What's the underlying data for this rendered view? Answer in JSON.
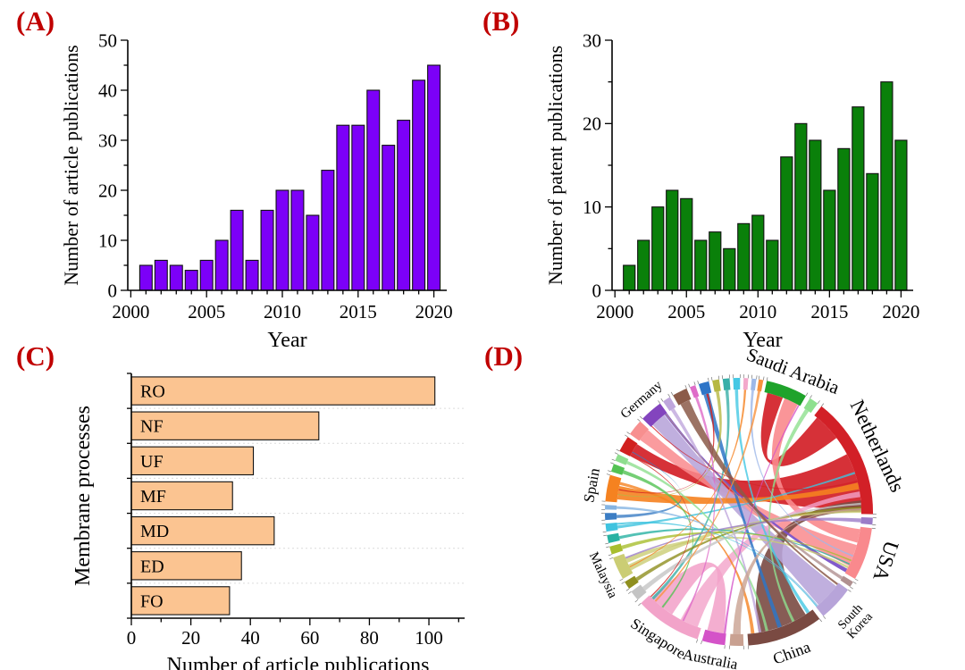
{
  "panels": {
    "label_color": "#C00000",
    "a": "(A)",
    "b": "(B)",
    "c": "(C)",
    "d": "(D)"
  },
  "chart_data": [
    {
      "panel": "A",
      "type": "bar",
      "title": "",
      "xlabel": "Year",
      "ylabel": "Number of article publications",
      "bar_color": "#7C00F8",
      "bar_edge": "#111111",
      "categories": [
        2001,
        2002,
        2003,
        2004,
        2005,
        2006,
        2007,
        2008,
        2009,
        2010,
        2011,
        2012,
        2013,
        2014,
        2015,
        2016,
        2017,
        2018,
        2019,
        2020
      ],
      "values": [
        5,
        6,
        5,
        4,
        6,
        10,
        16,
        6,
        16,
        20,
        20,
        15,
        24,
        33,
        33,
        40,
        29,
        34,
        42,
        45
      ],
      "ylim": [
        0,
        50
      ],
      "yticks": [
        0,
        10,
        20,
        30,
        40,
        50
      ],
      "xlim": [
        1999.8,
        2020.85
      ],
      "xticks": [
        2000,
        2005,
        2010,
        2015,
        2020
      ],
      "grid": false,
      "legend": "none"
    },
    {
      "panel": "B",
      "type": "bar",
      "title": "",
      "xlabel": "Year",
      "ylabel": "Number of patent publications",
      "bar_color": "#0A800A",
      "bar_edge": "#111111",
      "categories": [
        2001,
        2002,
        2003,
        2004,
        2005,
        2006,
        2007,
        2008,
        2009,
        2010,
        2011,
        2012,
        2013,
        2014,
        2015,
        2016,
        2017,
        2018,
        2019,
        2020
      ],
      "values": [
        3,
        6,
        10,
        12,
        11,
        6,
        7,
        5,
        8,
        9,
        6,
        16,
        20,
        18,
        12,
        17,
        22,
        14,
        25,
        18
      ],
      "ylim": [
        0,
        30
      ],
      "yticks": [
        0,
        10,
        20,
        30
      ],
      "xlim": [
        1999.8,
        2020.85
      ],
      "xticks": [
        2000,
        2005,
        2010,
        2015,
        2020
      ],
      "grid": false,
      "legend": "none"
    },
    {
      "panel": "C",
      "type": "hbar",
      "title": "",
      "xlabel": "Number of article publications",
      "ylabel": "Membrane processes",
      "bar_color": "#FBC491",
      "bar_edge": "#111111",
      "categories": [
        "RO",
        "NF",
        "UF",
        "MF",
        "MD",
        "ED",
        "FO"
      ],
      "values": [
        102,
        63,
        41,
        34,
        48,
        37,
        33
      ],
      "xlim": [
        0,
        112
      ],
      "xticks": [
        0,
        20,
        40,
        60,
        80,
        100
      ],
      "minor_xticks": [
        10,
        30,
        50,
        70,
        90,
        110
      ],
      "grid": "dotted-category-separators",
      "legend": "none"
    },
    {
      "panel": "D",
      "type": "chord",
      "title": "",
      "description": "International collaboration chord diagram",
      "labels": [
        "Saudi Arabia",
        "Netherlands",
        "USA",
        "South Korea",
        "China",
        "Australia",
        "Singapore",
        "Malaysia",
        "Spain",
        "Germany"
      ],
      "segments": [
        {
          "c": "#1FA32B",
          "a0": 12,
          "a1": 30,
          "label": "Saudi Arabia",
          "lc": "#1FA32B",
          "ls": 21,
          "r_off": 2
        },
        {
          "c": "#8FE08F",
          "a0": 32,
          "a1": 36
        },
        {
          "c": "#D22027",
          "a0": 38,
          "a1": 91,
          "label": "Netherlands",
          "lc": "#E02A22",
          "ls": 23,
          "r_off": 4
        },
        {
          "c": "#9B7CC8",
          "a0": 92.5,
          "a1": 95.5
        },
        {
          "c": "#F9898D",
          "a0": 97,
          "a1": 120,
          "label": "USA",
          "lc": "#F98A8A",
          "ls": 23,
          "r_off": 6
        },
        {
          "c": "#B09090",
          "a0": 121.5,
          "a1": 124
        },
        {
          "c": "#B7A4D9",
          "a0": 125.5,
          "a1": 141,
          "label": "South Korea",
          "lines": [
            "South",
            "Korea"
          ],
          "lc": "#6F5FC5",
          "ls": 14,
          "r_off": 4
        },
        {
          "c": "#7A4A42",
          "a0": 143,
          "a1": 176,
          "label": "China",
          "lc": "#8A4038",
          "ls": 18,
          "r_off": 0
        },
        {
          "c": "#C9A191",
          "a0": 178,
          "a1": 184
        },
        {
          "c": "#D453C8",
          "a0": 186,
          "a1": 196,
          "label": "Australia",
          "lc": "#DD66D4",
          "ls": 17,
          "r_off": 0
        },
        {
          "c": "#F2A3C9",
          "a0": 198,
          "a1": 227,
          "label": "Singapore",
          "lc": "#F07EB0",
          "ls": 17,
          "r_off": 0
        },
        {
          "c": "#C4C4C4",
          "a0": 229,
          "a1": 233.5
        },
        {
          "c": "#8F8F1F",
          "a0": 235,
          "a1": 238.5
        },
        {
          "c": "#CBCD74",
          "a0": 240,
          "a1": 250,
          "label": "Malaysia",
          "lc": "#A3A53B",
          "ls": 15,
          "r_off": 0
        },
        {
          "c": "#A8BE2E",
          "a0": 251.5,
          "a1": 255
        },
        {
          "c": "#28B2A2",
          "a0": 256.5,
          "a1": 260
        },
        {
          "c": "#3FC3DF",
          "a0": 261.5,
          "a1": 265
        },
        {
          "c": "#3B7DC4",
          "a0": 266.5,
          "a1": 269.5
        },
        {
          "c": "#85B4E2",
          "a0": 271,
          "a1": 273
        },
        {
          "c": "#F58220",
          "a0": 274.5,
          "a1": 286,
          "label": "Spain",
          "lc": "#F58220",
          "ls": 17,
          "r_off": 2
        },
        {
          "c": "#53C253",
          "a0": 287.5,
          "a1": 291
        },
        {
          "c": "#8EDE8E",
          "a0": 292.5,
          "a1": 295.5
        },
        {
          "c": "#D1201F",
          "a0": 297,
          "a1": 304
        },
        {
          "c": "#F78F8F",
          "a0": 305.5,
          "a1": 312.5
        },
        {
          "c": "#8344BE",
          "a0": 314,
          "a1": 324,
          "label": "Germany",
          "lc": "#7C42BD",
          "ls": 15,
          "r_off": 2
        },
        {
          "c": "#BFA6DC",
          "a0": 325.5,
          "a1": 329
        },
        {
          "c": "#8B5B49",
          "a0": 330.5,
          "a1": 337
        },
        {
          "c": "#DF6CC8",
          "a0": 338.5,
          "a1": 341
        },
        {
          "c": "#2E75C7",
          "a0": 342.5,
          "a1": 347
        },
        {
          "c": "#B6B843",
          "a0": 348.5,
          "a1": 351.5
        },
        {
          "c": "#38AFA8",
          "a0": 353,
          "a1": 356
        },
        {
          "c": "#44C8E4",
          "a0": 357.5,
          "a1": 360.5
        },
        {
          "c": "#F3A8CB",
          "a0": 362,
          "a1": 364
        },
        {
          "c": "#9DB8E8",
          "a0": 365.5,
          "a1": 367.5
        },
        {
          "c": "#F7923E",
          "a0": 368.5,
          "a1": 370.5
        }
      ],
      "chords": [
        [
          2,
          0.45,
          0.5,
          22,
          0.05,
          0.9,
          "#D22027",
          0.92
        ],
        [
          2,
          0.03,
          0.25,
          0,
          0.08,
          0.42,
          "#D22027",
          0.92
        ],
        [
          4,
          0.05,
          0.28,
          0,
          0.55,
          0.38,
          "#F9898D",
          0.9
        ],
        [
          4,
          0.38,
          0.45,
          23,
          0.08,
          0.85,
          "#F9898D",
          0.85
        ],
        [
          7,
          0.12,
          0.72,
          2,
          0.88,
          0.1,
          "#7A4A42",
          0.9
        ],
        [
          6,
          0.12,
          0.78,
          24,
          0.12,
          0.72,
          "#B7A4D9",
          0.88
        ],
        [
          10,
          0.52,
          0.42,
          9,
          0.12,
          0.78,
          "#F2A3C9",
          0.88
        ],
        [
          10,
          0.06,
          0.3,
          2,
          0.8,
          0.05,
          "#F2A3C9",
          0.8
        ],
        [
          24,
          0.86,
          0.13,
          4,
          0.9,
          0.08,
          "#7B52C8",
          0.95
        ],
        [
          19,
          0.12,
          0.55,
          2,
          0.72,
          0.06,
          "#F58220",
          0.9
        ],
        [
          19,
          0.72,
          0.12,
          7,
          0.9,
          0.05,
          "#F58220",
          0.8
        ],
        [
          13,
          0.15,
          0.3,
          2,
          0.965,
          0.025,
          "#CBCD74",
          0.8
        ],
        [
          13,
          0.55,
          0.22,
          4,
          0.84,
          0.05,
          "#CBCD74",
          0.8
        ],
        [
          15,
          0.2,
          0.4,
          4,
          0.78,
          0.03,
          "#28B2A2",
          0.8
        ],
        [
          16,
          0.2,
          0.4,
          2,
          0.62,
          0.02,
          "#3FC3DF",
          0.8
        ],
        [
          30,
          0.2,
          0.5,
          10,
          0.9,
          0.05,
          "#38AFA8",
          0.8
        ],
        [
          31,
          0.2,
          0.5,
          7,
          0.05,
          0.05,
          "#44C8E4",
          0.8
        ],
        [
          28,
          0.15,
          0.6,
          7,
          0.5,
          0.06,
          "#2E75C7",
          0.85
        ],
        [
          28,
          0.45,
          0.2,
          19,
          0.5,
          0.04,
          "#D1201F",
          0.85
        ],
        [
          21,
          0.2,
          0.5,
          7,
          0.7,
          0.04,
          "#8EDE8E",
          0.8
        ],
        [
          20,
          0.2,
          0.5,
          10,
          0.7,
          0.03,
          "#53C253",
          0.8
        ],
        [
          1,
          0.2,
          0.5,
          7,
          0.3,
          0.04,
          "#8FE08F",
          0.8
        ],
        [
          12,
          0.2,
          0.5,
          2,
          0.935,
          0.02,
          "#8F8F1F",
          0.8
        ],
        [
          14,
          0.2,
          0.5,
          4,
          0.7,
          0.03,
          "#A8BE2E",
          0.8
        ],
        [
          29,
          0.2,
          0.5,
          19,
          0.3,
          0.04,
          "#B6B843",
          0.8
        ],
        [
          27,
          0.2,
          0.5,
          10,
          0.3,
          0.03,
          "#DF6CC8",
          0.8
        ],
        [
          17,
          0.2,
          0.5,
          22,
          0.3,
          0.06,
          "#3B7DC4",
          0.8
        ],
        [
          18,
          0.2,
          0.6,
          6,
          0.92,
          0.04,
          "#85B4E2",
          0.8
        ],
        [
          25,
          0.2,
          0.5,
          7,
          0.8,
          0.04,
          "#BFA6DC",
          0.8
        ],
        [
          11,
          0.2,
          0.5,
          2,
          0.9,
          0.02,
          "#C4C4C4",
          0.8
        ],
        [
          8,
          0.2,
          0.6,
          2,
          0.95,
          0.015,
          "#C9A191",
          0.8
        ],
        [
          5,
          0.2,
          0.6,
          24,
          0.9,
          0.06,
          "#B09090",
          0.8
        ],
        [
          3,
          0.2,
          0.6,
          13,
          0.75,
          0.08,
          "#9B7CC8",
          0.8
        ],
        [
          26,
          0.15,
          0.7,
          6,
          0.02,
          0.06,
          "#8B5B49",
          0.85
        ],
        [
          9,
          0.02,
          0.1,
          0,
          0.94,
          0.04,
          "#D453C8",
          0.8
        ],
        [
          22,
          0.02,
          0.08,
          10,
          0.96,
          0.02,
          "#D1201F",
          0.8
        ],
        [
          32,
          0.2,
          0.5,
          13,
          0.3,
          0.05,
          "#F58220",
          0.8
        ],
        [
          2,
          0.7,
          0.015,
          24,
          0.02,
          0.05,
          "#D22027",
          0.8
        ],
        [
          16,
          0.7,
          0.25,
          6,
          0.96,
          0.03,
          "#3FC3DF",
          0.8
        ],
        [
          33,
          0.2,
          0.6,
          4,
          0.6,
          0.03,
          "#9DB8E8",
          0.8
        ],
        [
          34,
          0.2,
          0.6,
          10,
          0.85,
          0.03,
          "#F7923E",
          0.8
        ]
      ]
    }
  ]
}
